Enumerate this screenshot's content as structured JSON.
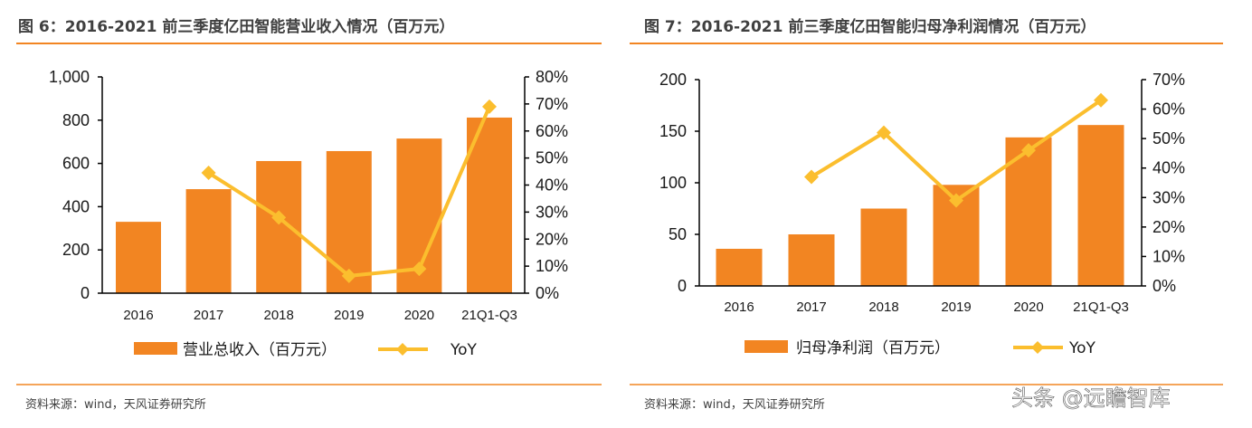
{
  "watermark": "头条 @远瞻智库",
  "colors": {
    "bar": "#F28522",
    "line": "#FBBE2E",
    "rule": "#F28522",
    "text": "#404040"
  },
  "chart_data": [
    {
      "type": "bar+line",
      "title": "图 6：2016-2021 前三季度亿田智能营业收入情况（百万元）",
      "source": "资料来源：wind，天风证券研究所",
      "categories": [
        "2016",
        "2017",
        "2018",
        "2019",
        "2020",
        "21Q1-Q3"
      ],
      "left_axis": {
        "range": [
          0,
          1000
        ],
        "ticks": [
          "0",
          "200",
          "400",
          "600",
          "800",
          "1,000"
        ]
      },
      "right_axis": {
        "range": [
          0,
          80
        ],
        "ticks": [
          "0%",
          "10%",
          "20%",
          "30%",
          "40%",
          "50%",
          "60%",
          "70%",
          "80%"
        ]
      },
      "series": [
        {
          "name": "营业总收入（百万元）",
          "type": "bar",
          "axis": "left",
          "values": [
            330,
            481,
            611,
            657,
            715,
            812
          ]
        },
        {
          "name": "YoY",
          "type": "line",
          "axis": "right",
          "values": [
            null,
            44.5,
            28,
            6.4,
            9,
            69
          ]
        }
      ],
      "legend": "bottom",
      "grid": false
    },
    {
      "type": "bar+line",
      "title": "图 7：2016-2021 前三季度亿田智能归母净利润情况（百万元）",
      "source": "资料来源：wind，天风证券研究所",
      "categories": [
        "2016",
        "2017",
        "2018",
        "2019",
        "2020",
        "21Q1-Q3"
      ],
      "left_axis": {
        "range": [
          0,
          200
        ],
        "ticks": [
          "0",
          "50",
          "100",
          "150",
          "200"
        ]
      },
      "right_axis": {
        "range": [
          0,
          70
        ],
        "ticks": [
          "0%",
          "10%",
          "20%",
          "30%",
          "40%",
          "50%",
          "60%",
          "70%"
        ]
      },
      "series": [
        {
          "name": "归母净利润（百万元）",
          "type": "bar",
          "axis": "left",
          "values": [
            36,
            50,
            75,
            98,
            144,
            156
          ]
        },
        {
          "name": "YoY",
          "type": "line",
          "axis": "right",
          "values": [
            null,
            37,
            52,
            29,
            46,
            63
          ]
        }
      ],
      "legend": "bottom",
      "grid": false
    }
  ]
}
